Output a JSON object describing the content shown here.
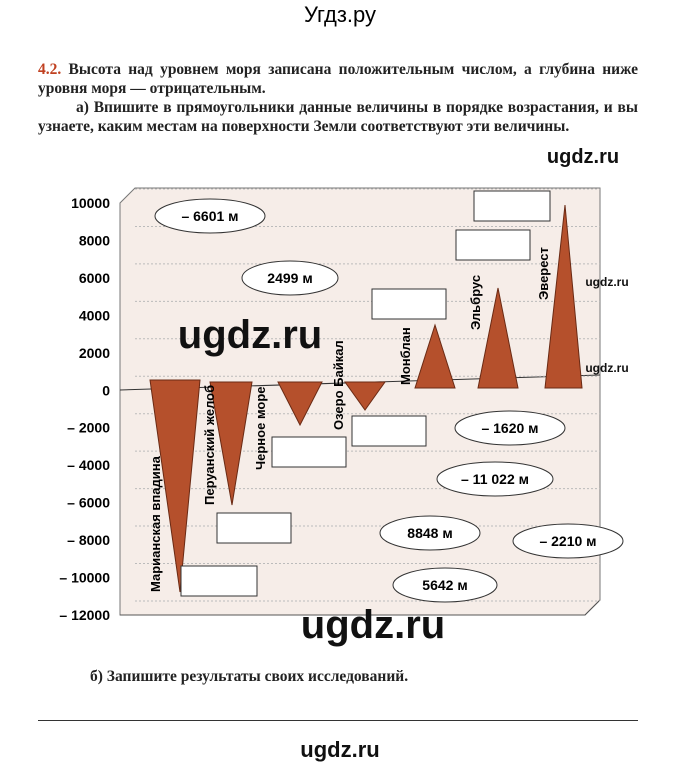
{
  "header": {
    "title": "Угдз.ру"
  },
  "task": {
    "number": "4.2.",
    "intro": "Высота над уровнем моря записана положительным числом, а глубина ниже уровня моря — отрицательным.",
    "part_a": "а) Впишите в прямоугольники данные величины в порядке возрастания, и вы узнаете, каким местам на поверхности Земли соответствуют эти величины.",
    "part_b": "б) Запишите результаты своих исследований."
  },
  "figure": {
    "axis_labels": [
      "10000",
      "8000",
      "6000",
      "4000",
      "2000",
      "0",
      "– 2000",
      "– 4000",
      "– 6000",
      "– 8000",
      "– 10000",
      "– 12000"
    ],
    "places": [
      "Марианская впадина",
      "Перуанский желоб",
      "Черное море",
      "Озеро Байкал",
      "Монблан",
      "Эльбрус",
      "Эверест"
    ],
    "clouds": [
      "– 6601 м",
      "2499 м",
      "– 1620 м",
      "– 11 022 м",
      "8848 м",
      "– 2210 м",
      "5642 м"
    ]
  },
  "watermarks": [
    "ugdz.ru",
    "ugdz.ru",
    "ugdz.ru",
    "ugdz.ru",
    "ugdz.ru",
    "ugdz.ru"
  ]
}
